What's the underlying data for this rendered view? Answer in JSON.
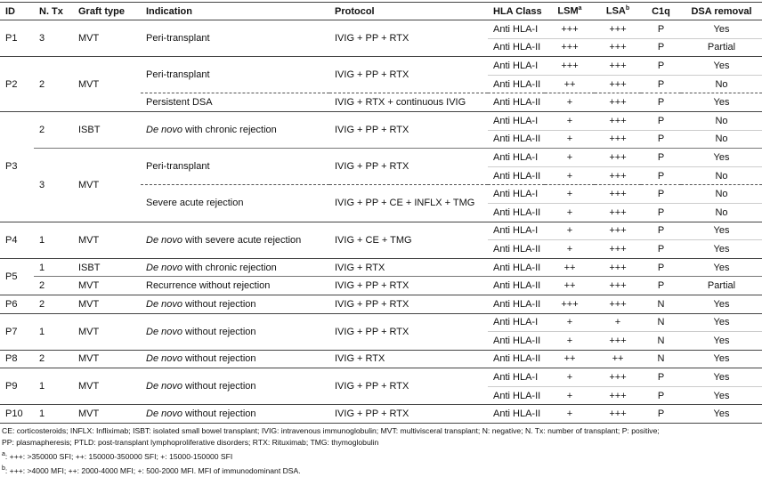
{
  "header": {
    "id": "ID",
    "n_tx": "N. Tx",
    "graft_type": "Graft type",
    "indication": "Indication",
    "protocol": "Protocol",
    "hla_class": "HLA Class",
    "lsm": {
      "text": "LSM",
      "sup": "a"
    },
    "lsa": {
      "text": "LSA",
      "sup": "b"
    },
    "c1q": "C1q",
    "dsa_removal": "DSA removal"
  },
  "patients": [
    {
      "id": "P1",
      "transplants": [
        {
          "n_tx": "3",
          "graft_type": "MVT",
          "indications": [
            {
              "indication": "Peri-transplant",
              "protocol": "IVIG + PP + RTX",
              "rows": [
                [
                  "Anti HLA-I",
                  "+++",
                  "+++",
                  "P",
                  "Yes"
                ],
                [
                  "Anti HLA-II",
                  "+++",
                  "+++",
                  "P",
                  "Partial"
                ]
              ]
            }
          ]
        }
      ]
    },
    {
      "id": "P2",
      "transplants": [
        {
          "n_tx": "2",
          "graft_type": "MVT",
          "indications": [
            {
              "indication": "Peri-transplant",
              "protocol": "IVIG + PP + RTX",
              "rows": [
                [
                  "Anti HLA-I",
                  "+++",
                  "+++",
                  "P",
                  "Yes"
                ],
                [
                  "Anti HLA-II",
                  "++",
                  "+++",
                  "P",
                  "No"
                ]
              ]
            },
            {
              "indication": "Persistent DSA",
              "protocol": "IVIG + RTX + continuous IVIG",
              "rows": [
                [
                  "Anti HLA-II",
                  "+",
                  "+++",
                  "P",
                  "Yes"
                ]
              ]
            }
          ]
        }
      ]
    },
    {
      "id": "P3",
      "transplants": [
        {
          "n_tx": "2",
          "graft_type": "ISBT",
          "indications": [
            {
              "prefix": "De novo",
              "indication": "with chronic rejection",
              "protocol": "IVIG + PP + RTX",
              "rows": [
                [
                  "Anti HLA-I",
                  "+",
                  "+++",
                  "P",
                  "No"
                ],
                [
                  "Anti HLA-II",
                  "+",
                  "+++",
                  "P",
                  "No"
                ]
              ]
            }
          ]
        },
        {
          "n_tx": "3",
          "graft_type": "MVT",
          "indications": [
            {
              "indication": "Peri-transplant",
              "protocol": "IVIG + PP + RTX",
              "rows": [
                [
                  "Anti HLA-I",
                  "+",
                  "+++",
                  "P",
                  "Yes"
                ],
                [
                  "Anti HLA-II",
                  "+",
                  "+++",
                  "P",
                  "No"
                ]
              ]
            },
            {
              "indication": "Severe acute rejection",
              "protocol": "IVIG + PP + CE + INFLX + TMG",
              "rows": [
                [
                  "Anti HLA-I",
                  "+",
                  "+++",
                  "P",
                  "No"
                ],
                [
                  "Anti HLA-II",
                  "+",
                  "+++",
                  "P",
                  "No"
                ]
              ]
            }
          ]
        }
      ]
    },
    {
      "id": "P4",
      "transplants": [
        {
          "n_tx": "1",
          "graft_type": "MVT",
          "indications": [
            {
              "prefix": "De novo",
              "indication": "with severe acute rejection",
              "protocol": "IVIG + CE + TMG",
              "rows": [
                [
                  "Anti HLA-I",
                  "+",
                  "+++",
                  "P",
                  "Yes"
                ],
                [
                  "Anti HLA-II",
                  "+",
                  "+++",
                  "P",
                  "Yes"
                ]
              ]
            }
          ]
        }
      ]
    },
    {
      "id": "P5",
      "transplants": [
        {
          "n_tx": "1",
          "graft_type": "ISBT",
          "indications": [
            {
              "prefix": "De novo",
              "indication": "with chronic rejection",
              "protocol": "IVIG + RTX",
              "rows": [
                [
                  "Anti HLA-II",
                  "++",
                  "+++",
                  "P",
                  "Yes"
                ]
              ]
            }
          ]
        },
        {
          "n_tx": "2",
          "graft_type": "MVT",
          "indications": [
            {
              "indication": "Recurrence without rejection",
              "protocol": "IVIG + PP + RTX",
              "rows": [
                [
                  "Anti HLA-II",
                  "++",
                  "+++",
                  "P",
                  "Partial"
                ]
              ]
            }
          ]
        }
      ]
    },
    {
      "id": "P6",
      "transplants": [
        {
          "n_tx": "2",
          "graft_type": "MVT",
          "indications": [
            {
              "prefix": "De novo",
              "indication": "without rejection",
              "protocol": "IVIG + PP + RTX",
              "rows": [
                [
                  "Anti HLA-II",
                  "+++",
                  "+++",
                  "N",
                  "Yes"
                ]
              ]
            }
          ]
        }
      ]
    },
    {
      "id": "P7",
      "transplants": [
        {
          "n_tx": "1",
          "graft_type": "MVT",
          "indications": [
            {
              "prefix": "De novo",
              "indication": "without rejection",
              "protocol": "IVIG + PP + RTX",
              "rows": [
                [
                  "Anti HLA-I",
                  "+",
                  "+",
                  "N",
                  "Yes"
                ],
                [
                  "Anti HLA-II",
                  "+",
                  "+++",
                  "N",
                  "Yes"
                ]
              ]
            }
          ]
        }
      ]
    },
    {
      "id": "P8",
      "transplants": [
        {
          "n_tx": "2",
          "graft_type": "MVT",
          "indications": [
            {
              "prefix": "De novo",
              "indication": "without rejection",
              "protocol": "IVIG + RTX",
              "rows": [
                [
                  "Anti HLA-II",
                  "++",
                  "++",
                  "N",
                  "Yes"
                ]
              ]
            }
          ]
        }
      ]
    },
    {
      "id": "P9",
      "transplants": [
        {
          "n_tx": "1",
          "graft_type": "MVT",
          "indications": [
            {
              "prefix": "De novo",
              "indication": "without rejection",
              "protocol": "IVIG + PP + RTX",
              "rows": [
                [
                  "Anti HLA-I",
                  "+",
                  "+++",
                  "P",
                  "Yes"
                ],
                [
                  "Anti HLA-II",
                  "+",
                  "+++",
                  "P",
                  "Yes"
                ]
              ]
            }
          ]
        }
      ]
    },
    {
      "id": "P10",
      "transplants": [
        {
          "n_tx": "1",
          "graft_type": "MVT",
          "indications": [
            {
              "prefix": "De novo",
              "indication": "without rejection",
              "protocol": "IVIG + PP + RTX",
              "rows": [
                [
                  "Anti HLA-II",
                  "+",
                  "+++",
                  "P",
                  "Yes"
                ]
              ]
            }
          ]
        }
      ]
    }
  ],
  "footnotes": [
    {
      "text": "CE: corticosteroids; INFLX: Infliximab; ISBT: isolated small bowel transplant; IVIG: intravenous immunoglobulin; MVT: multivisceral transplant; N: negative; N. Tx: number of transplant; P: positive;"
    },
    {
      "text": "PP: plasmapheresis; PTLD: post-transplant lymphoproliferative disorders; RTX: Rituximab; TMG: thymoglobulin"
    },
    {
      "sup": "a",
      "text": ": +++: >350000 SFI; ++: 150000-350000 SFI; +: 15000-150000 SFI"
    },
    {
      "sup": "b",
      "text": ": +++: >4000 MFI; ++: 2000-4000 MFI; +: 500-2000 MFI. MFI of immunodominant DSA."
    }
  ]
}
